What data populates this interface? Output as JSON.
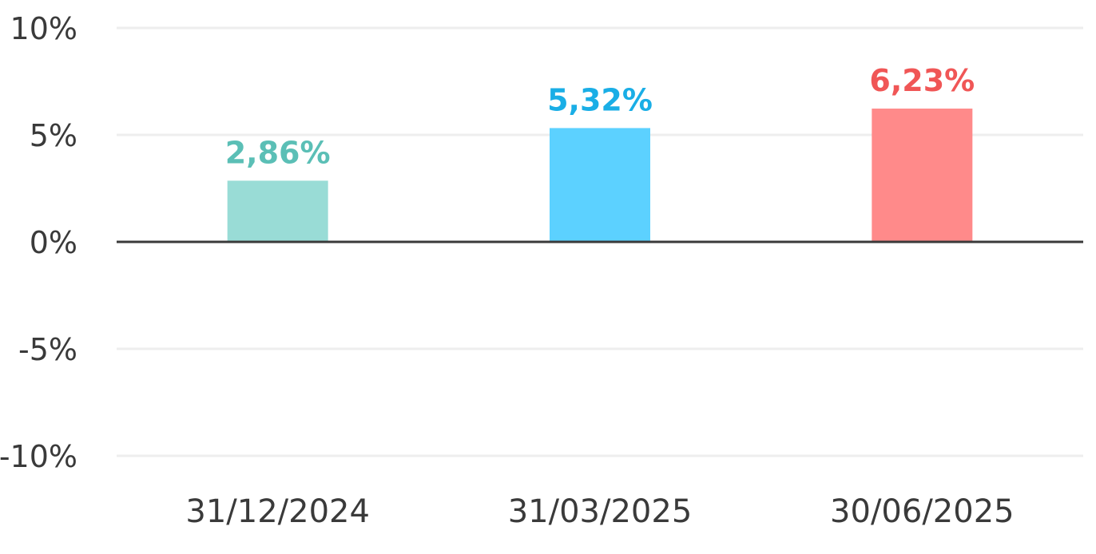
{
  "chart_data": {
    "type": "bar",
    "categories": [
      "31/12/2024",
      "31/03/2025",
      "30/06/2025"
    ],
    "values": [
      2.86,
      5.32,
      6.23
    ],
    "data_labels": [
      "2,86%",
      "5,32%",
      "6,23%"
    ],
    "bar_colors": [
      "#99dcd6",
      "#5cd1ff",
      "#ff8a8a"
    ],
    "label_colors": [
      "#5bbfb6",
      "#1aaee6",
      "#f05656"
    ],
    "ylim": [
      -10,
      10
    ],
    "yticks": [
      10,
      5,
      0,
      -5,
      -10
    ],
    "ytick_labels": [
      "10%",
      "5%",
      "0%",
      "-5%",
      "-10%"
    ],
    "title": "",
    "xlabel": "",
    "ylabel": "",
    "grid": true,
    "legend": "none"
  }
}
